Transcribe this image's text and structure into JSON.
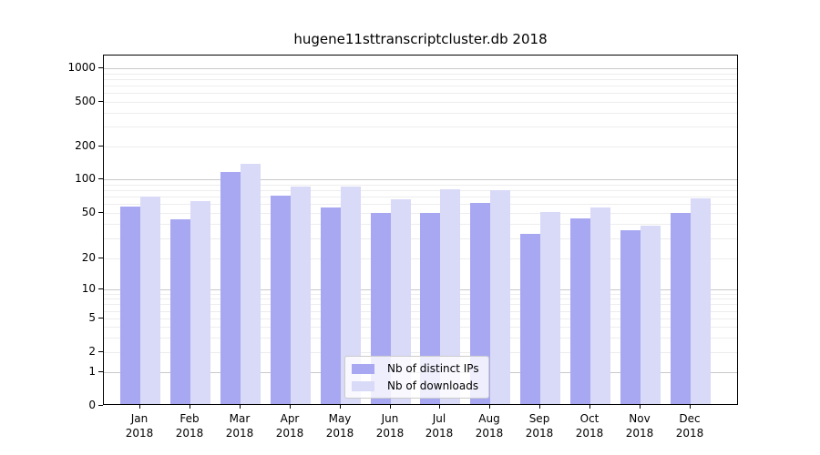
{
  "title": "hugene11sttranscriptcluster.db 2018",
  "legend": {
    "items": [
      {
        "label": "Nb of distinct IPs",
        "color": "#a8a8f2"
      },
      {
        "label": "Nb of downloads",
        "color": "#d9d9f8"
      }
    ]
  },
  "colors": {
    "bar_distinct_ips": "#a8a8f2",
    "bar_downloads": "#d9d9f8",
    "grid_major": "#c9c9c9",
    "grid_minor": "#ededed",
    "axis": "#000000"
  },
  "chart_data": {
    "type": "bar",
    "title": "hugene11sttranscriptcluster.db 2018",
    "categories": [
      "Jan 2018",
      "Feb 2018",
      "Mar 2018",
      "Apr 2018",
      "May 2018",
      "Jun 2018",
      "Jul 2018",
      "Aug 2018",
      "Sep 2018",
      "Oct 2018",
      "Nov 2018",
      "Dec 2018"
    ],
    "series": [
      {
        "name": "Nb of distinct IPs",
        "color": "#a8a8f2",
        "values": [
          57,
          44,
          116,
          71,
          56,
          50,
          50,
          61,
          33,
          45,
          35,
          50
        ]
      },
      {
        "name": "Nb of downloads",
        "color": "#d9d9f8",
        "values": [
          70,
          64,
          138,
          86,
          86,
          66,
          81,
          80,
          51,
          56,
          39,
          67
        ]
      }
    ],
    "xlabel": "",
    "ylabel": "",
    "yscale": "symlog",
    "yticks": [
      0,
      1,
      2,
      5,
      10,
      20,
      50,
      100,
      200,
      500,
      1000
    ],
    "ylim": [
      0,
      1200
    ],
    "grid": true,
    "legend_position": "lower center"
  }
}
